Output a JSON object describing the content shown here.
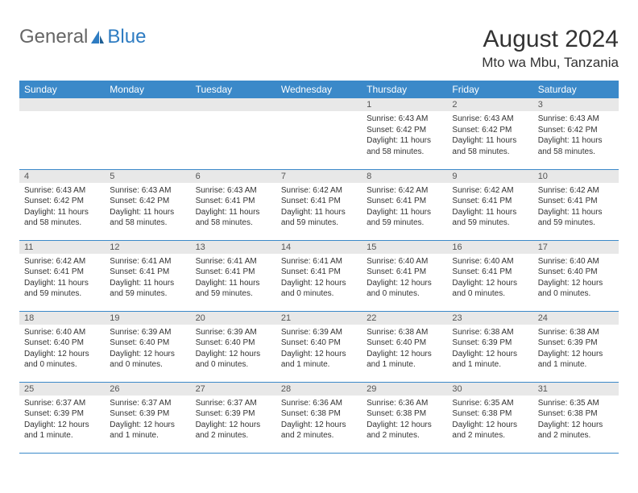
{
  "brand": {
    "part1": "General",
    "part2": "Blue"
  },
  "title": "August 2024",
  "location": "Mto wa Mbu, Tanzania",
  "colors": {
    "header_bg": "#3b89c9",
    "header_text": "#ffffff",
    "daynum_bg": "#e8e8e8",
    "border": "#3b89c9",
    "text": "#333333",
    "brand_blue": "#2e7cc2"
  },
  "weekdays": [
    "Sunday",
    "Monday",
    "Tuesday",
    "Wednesday",
    "Thursday",
    "Friday",
    "Saturday"
  ],
  "weeks": [
    [
      null,
      null,
      null,
      null,
      {
        "d": "1",
        "sr": "6:43 AM",
        "ss": "6:42 PM",
        "dl": "11 hours and 58 minutes."
      },
      {
        "d": "2",
        "sr": "6:43 AM",
        "ss": "6:42 PM",
        "dl": "11 hours and 58 minutes."
      },
      {
        "d": "3",
        "sr": "6:43 AM",
        "ss": "6:42 PM",
        "dl": "11 hours and 58 minutes."
      }
    ],
    [
      {
        "d": "4",
        "sr": "6:43 AM",
        "ss": "6:42 PM",
        "dl": "11 hours and 58 minutes."
      },
      {
        "d": "5",
        "sr": "6:43 AM",
        "ss": "6:42 PM",
        "dl": "11 hours and 58 minutes."
      },
      {
        "d": "6",
        "sr": "6:43 AM",
        "ss": "6:41 PM",
        "dl": "11 hours and 58 minutes."
      },
      {
        "d": "7",
        "sr": "6:42 AM",
        "ss": "6:41 PM",
        "dl": "11 hours and 59 minutes."
      },
      {
        "d": "8",
        "sr": "6:42 AM",
        "ss": "6:41 PM",
        "dl": "11 hours and 59 minutes."
      },
      {
        "d": "9",
        "sr": "6:42 AM",
        "ss": "6:41 PM",
        "dl": "11 hours and 59 minutes."
      },
      {
        "d": "10",
        "sr": "6:42 AM",
        "ss": "6:41 PM",
        "dl": "11 hours and 59 minutes."
      }
    ],
    [
      {
        "d": "11",
        "sr": "6:42 AM",
        "ss": "6:41 PM",
        "dl": "11 hours and 59 minutes."
      },
      {
        "d": "12",
        "sr": "6:41 AM",
        "ss": "6:41 PM",
        "dl": "11 hours and 59 minutes."
      },
      {
        "d": "13",
        "sr": "6:41 AM",
        "ss": "6:41 PM",
        "dl": "11 hours and 59 minutes."
      },
      {
        "d": "14",
        "sr": "6:41 AM",
        "ss": "6:41 PM",
        "dl": "12 hours and 0 minutes."
      },
      {
        "d": "15",
        "sr": "6:40 AM",
        "ss": "6:41 PM",
        "dl": "12 hours and 0 minutes."
      },
      {
        "d": "16",
        "sr": "6:40 AM",
        "ss": "6:41 PM",
        "dl": "12 hours and 0 minutes."
      },
      {
        "d": "17",
        "sr": "6:40 AM",
        "ss": "6:40 PM",
        "dl": "12 hours and 0 minutes."
      }
    ],
    [
      {
        "d": "18",
        "sr": "6:40 AM",
        "ss": "6:40 PM",
        "dl": "12 hours and 0 minutes."
      },
      {
        "d": "19",
        "sr": "6:39 AM",
        "ss": "6:40 PM",
        "dl": "12 hours and 0 minutes."
      },
      {
        "d": "20",
        "sr": "6:39 AM",
        "ss": "6:40 PM",
        "dl": "12 hours and 0 minutes."
      },
      {
        "d": "21",
        "sr": "6:39 AM",
        "ss": "6:40 PM",
        "dl": "12 hours and 1 minute."
      },
      {
        "d": "22",
        "sr": "6:38 AM",
        "ss": "6:40 PM",
        "dl": "12 hours and 1 minute."
      },
      {
        "d": "23",
        "sr": "6:38 AM",
        "ss": "6:39 PM",
        "dl": "12 hours and 1 minute."
      },
      {
        "d": "24",
        "sr": "6:38 AM",
        "ss": "6:39 PM",
        "dl": "12 hours and 1 minute."
      }
    ],
    [
      {
        "d": "25",
        "sr": "6:37 AM",
        "ss": "6:39 PM",
        "dl": "12 hours and 1 minute."
      },
      {
        "d": "26",
        "sr": "6:37 AM",
        "ss": "6:39 PM",
        "dl": "12 hours and 1 minute."
      },
      {
        "d": "27",
        "sr": "6:37 AM",
        "ss": "6:39 PM",
        "dl": "12 hours and 2 minutes."
      },
      {
        "d": "28",
        "sr": "6:36 AM",
        "ss": "6:38 PM",
        "dl": "12 hours and 2 minutes."
      },
      {
        "d": "29",
        "sr": "6:36 AM",
        "ss": "6:38 PM",
        "dl": "12 hours and 2 minutes."
      },
      {
        "d": "30",
        "sr": "6:35 AM",
        "ss": "6:38 PM",
        "dl": "12 hours and 2 minutes."
      },
      {
        "d": "31",
        "sr": "6:35 AM",
        "ss": "6:38 PM",
        "dl": "12 hours and 2 minutes."
      }
    ]
  ],
  "labels": {
    "sunrise": "Sunrise:",
    "sunset": "Sunset:",
    "daylight": "Daylight:"
  }
}
